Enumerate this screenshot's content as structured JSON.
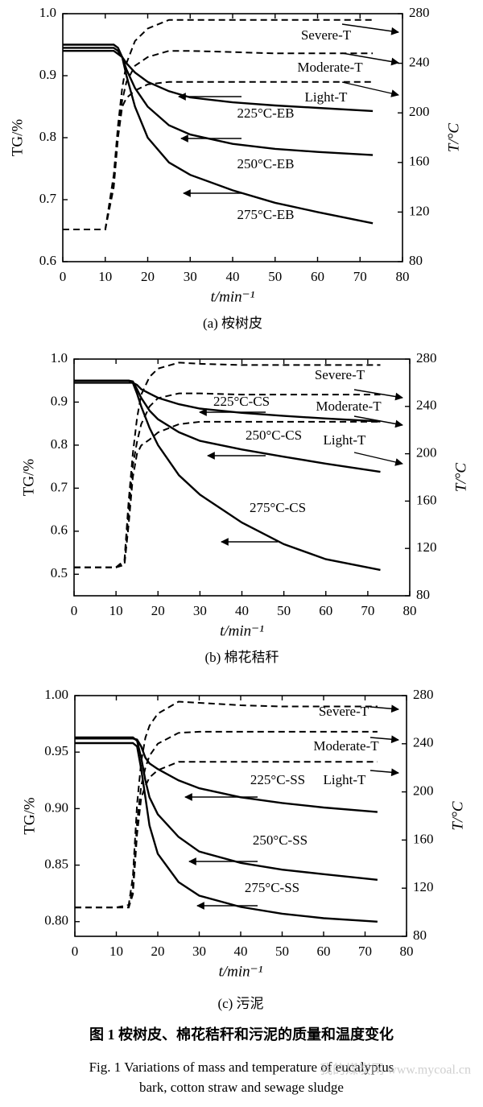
{
  "chart_data": [
    {
      "type": "line",
      "caption": "(a) 桉树皮",
      "x_label": "t/min⁻¹",
      "y_label": "TG/%",
      "y2_label": "T/°C",
      "x": [
        0,
        5,
        10,
        12,
        13,
        14,
        15,
        17,
        20,
        25,
        30,
        40,
        50,
        60,
        73
      ],
      "xlim": [
        0,
        80
      ],
      "xticks": [
        0,
        10,
        20,
        30,
        40,
        50,
        60,
        70,
        80
      ],
      "ylim": [
        0.6,
        1.0
      ],
      "yticks": [
        0.6,
        0.7,
        0.8,
        0.9,
        {
          "value": 1,
          "label": "1.0"
        }
      ],
      "y2lim": [
        80,
        280
      ],
      "y2ticks": [
        80,
        120,
        160,
        200,
        240,
        280
      ],
      "series": [
        {
          "name": "225°C-EB",
          "color": "#000000",
          "values": [
            0.94,
            0.94,
            0.94,
            0.94,
            0.935,
            0.93,
            0.92,
            0.905,
            0.89,
            0.875,
            0.865,
            0.857,
            0.852,
            0.848,
            0.843
          ]
        },
        {
          "name": "250°C-EB",
          "color": "#000000",
          "values": [
            0.945,
            0.945,
            0.945,
            0.945,
            0.94,
            0.93,
            0.91,
            0.88,
            0.85,
            0.82,
            0.805,
            0.79,
            0.782,
            0.777,
            0.772
          ]
        },
        {
          "name": "275°C-EB",
          "color": "#000000",
          "values": [
            0.95,
            0.95,
            0.95,
            0.95,
            0.945,
            0.93,
            0.9,
            0.85,
            0.8,
            0.76,
            0.74,
            0.715,
            0.695,
            0.68,
            0.662
          ]
        },
        {
          "name": "Severe-T",
          "color": "#000000",
          "axis": "y2",
          "dashed": true,
          "values": [
            106,
            106,
            106,
            150,
            190,
            220,
            240,
            258,
            268,
            275,
            275,
            275,
            275,
            275,
            275
          ]
        },
        {
          "name": "Moderate-T",
          "color": "#000000",
          "axis": "y2",
          "dashed": true,
          "values": [
            106,
            106,
            106,
            145,
            185,
            210,
            225,
            238,
            245,
            250,
            250,
            249,
            248,
            248,
            248
          ]
        },
        {
          "name": "Light-T",
          "color": "#000000",
          "axis": "y2",
          "dashed": true,
          "values": [
            106,
            106,
            106,
            140,
            180,
            205,
            212,
            218,
            223,
            225,
            225,
            225,
            225,
            225,
            225
          ]
        }
      ]
    },
    {
      "type": "line",
      "caption": "(b) 棉花秸秆",
      "x_label": "t/min⁻¹",
      "y_label": "TG/%",
      "y2_label": "T/°C",
      "x": [
        0,
        5,
        10,
        12,
        13,
        14,
        15,
        16,
        18,
        20,
        25,
        30,
        40,
        50,
        60,
        73
      ],
      "xlim": [
        0,
        80
      ],
      "xticks": [
        0,
        10,
        20,
        30,
        40,
        50,
        60,
        70,
        80
      ],
      "ylim": [
        0.45,
        1.0
      ],
      "yticks": [
        0.5,
        0.6,
        0.7,
        0.8,
        0.9,
        {
          "value": 1,
          "label": "1.0"
        }
      ],
      "y2lim": [
        80,
        280
      ],
      "y2ticks": [
        80,
        120,
        160,
        200,
        240,
        280
      ],
      "series": [
        {
          "name": "225°C-CS",
          "color": "#000000",
          "values": [
            0.945,
            0.945,
            0.945,
            0.945,
            0.945,
            0.945,
            0.94,
            0.93,
            0.92,
            0.91,
            0.895,
            0.885,
            0.875,
            0.868,
            0.862,
            0.855
          ]
        },
        {
          "name": "250°C-CS",
          "color": "#000000",
          "values": [
            0.95,
            0.95,
            0.95,
            0.95,
            0.95,
            0.948,
            0.93,
            0.91,
            0.88,
            0.86,
            0.83,
            0.81,
            0.79,
            0.773,
            0.757,
            0.738
          ]
        },
        {
          "name": "275°C-CS",
          "color": "#000000",
          "values": [
            0.95,
            0.95,
            0.95,
            0.95,
            0.95,
            0.945,
            0.92,
            0.89,
            0.84,
            0.8,
            0.73,
            0.685,
            0.62,
            0.57,
            0.535,
            0.51
          ]
        },
        {
          "name": "Severe-T",
          "color": "#000000",
          "axis": "y2",
          "dashed": true,
          "values": [
            104,
            104,
            104,
            110,
            160,
            200,
            230,
            250,
            265,
            272,
            277,
            276,
            275,
            275,
            275,
            275
          ]
        },
        {
          "name": "Moderate-T",
          "color": "#000000",
          "axis": "y2",
          "dashed": true,
          "values": [
            104,
            104,
            104,
            108,
            150,
            190,
            210,
            225,
            240,
            247,
            251,
            251,
            250,
            250,
            250,
            250
          ]
        },
        {
          "name": "Light-T",
          "color": "#000000",
          "axis": "y2",
          "dashed": true,
          "values": [
            104,
            104,
            104,
            106,
            140,
            180,
            200,
            207,
            212,
            218,
            225,
            227,
            227,
            227,
            227,
            227
          ]
        }
      ]
    },
    {
      "type": "line",
      "caption": "(c) 污泥",
      "x_label": "t/min⁻¹",
      "y_label": "TG/%",
      "y2_label": "T/°C",
      "x": [
        0,
        5,
        10,
        13,
        14,
        15,
        16,
        17,
        18,
        20,
        25,
        30,
        40,
        50,
        60,
        73
      ],
      "xlim": [
        0,
        80
      ],
      "xticks": [
        0,
        10,
        20,
        30,
        40,
        50,
        60,
        70,
        80
      ],
      "ylim": [
        0.787,
        1.0
      ],
      "yticks": [
        {
          "value": 0.8,
          "label": "0.80"
        },
        0.85,
        {
          "value": 0.9,
          "label": "0.90"
        },
        0.95,
        {
          "value": 1,
          "label": "1.00"
        }
      ],
      "y2lim": [
        80,
        280
      ],
      "y2ticks": [
        80,
        120,
        160,
        200,
        240,
        280
      ],
      "series": [
        {
          "name": "225°C-SS",
          "color": "#000000",
          "values": [
            0.962,
            0.962,
            0.962,
            0.962,
            0.962,
            0.961,
            0.955,
            0.945,
            0.94,
            0.935,
            0.925,
            0.918,
            0.91,
            0.905,
            0.901,
            0.897
          ]
        },
        {
          "name": "250°C-SS",
          "color": "#000000",
          "values": [
            0.963,
            0.963,
            0.963,
            0.963,
            0.963,
            0.96,
            0.945,
            0.925,
            0.91,
            0.895,
            0.875,
            0.862,
            0.852,
            0.846,
            0.842,
            0.837
          ]
        },
        {
          "name": "275°C-SS",
          "color": "#000000",
          "values": [
            0.958,
            0.958,
            0.958,
            0.958,
            0.958,
            0.955,
            0.935,
            0.91,
            0.885,
            0.86,
            0.835,
            0.823,
            0.813,
            0.807,
            0.803,
            0.8
          ]
        },
        {
          "name": "Severe-T",
          "color": "#000000",
          "axis": "y2",
          "dashed": true,
          "values": [
            104,
            104,
            104,
            106,
            130,
            190,
            225,
            245,
            255,
            265,
            275,
            274,
            272,
            271,
            271,
            271
          ]
        },
        {
          "name": "Moderate-T",
          "color": "#000000",
          "axis": "y2",
          "dashed": true,
          "values": [
            104,
            104,
            104,
            104,
            120,
            175,
            205,
            220,
            230,
            240,
            249,
            250,
            250,
            250,
            250,
            250
          ]
        },
        {
          "name": "Light-T",
          "color": "#000000",
          "axis": "y2",
          "dashed": true,
          "values": [
            104,
            104,
            104,
            104,
            115,
            165,
            195,
            205,
            212,
            218,
            225,
            225,
            225,
            225,
            225,
            225
          ]
        }
      ]
    }
  ],
  "caption_zh": "图 1  桉树皮、棉花秸秆和污泥的质量和温度变化",
  "caption_en": [
    "Fig. 1  Variations of mass and temperature of eucalyptus",
    "bark, cotton straw and sewage sludge"
  ],
  "watermark": "我的煤炭网 www.mycoal.cn"
}
